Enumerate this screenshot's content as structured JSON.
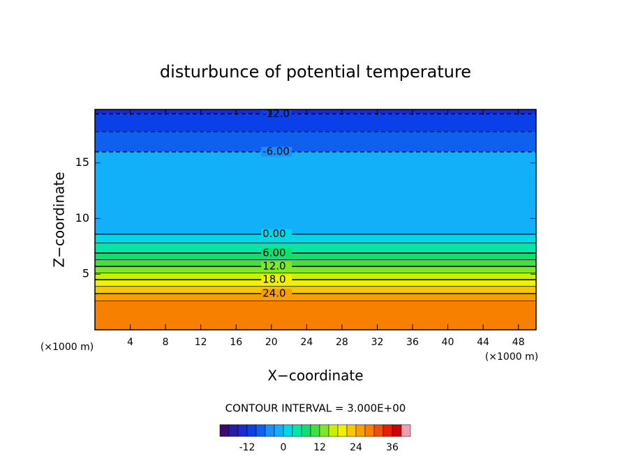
{
  "chart_data": {
    "type": "contour",
    "title": "disturbunce of potential temperature",
    "xlabel": "X−coordinate",
    "ylabel": "Z−coordinate",
    "x_unit": "(×1000 m)",
    "y_unit": "(×1000 m)",
    "note": "CONTOUR INTERVAL = 3.000E+00",
    "xlim": [
      0,
      50
    ],
    "ylim": [
      0,
      19.8
    ],
    "xticks": [
      4,
      8,
      12,
      16,
      20,
      24,
      28,
      32,
      36,
      40,
      44,
      48
    ],
    "yticks": [
      5,
      10,
      15
    ],
    "contours": [
      {
        "value": -12,
        "label": "-12.0",
        "z": 19.4
      },
      {
        "value": -9,
        "z": 17.8
      },
      {
        "value": -6,
        "label": "-6.00",
        "z": 16.0
      },
      {
        "value": 0,
        "label": "0.00",
        "z": 8.6
      },
      {
        "value": 3,
        "z": 7.8
      },
      {
        "value": 6,
        "label": "6.00",
        "z": 6.9
      },
      {
        "value": 9,
        "z": 6.3
      },
      {
        "value": 12,
        "label": "12.0",
        "z": 5.7
      },
      {
        "value": 15,
        "z": 5.1
      },
      {
        "value": 18,
        "label": "18.0",
        "z": 4.5
      },
      {
        "value": 21,
        "z": 3.9
      },
      {
        "value": 24,
        "label": "24.0",
        "z": 3.25
      },
      {
        "value": 27,
        "z": 2.6
      }
    ],
    "clim": [
      -21,
      42
    ],
    "cstep": 3,
    "cticks": [
      -12,
      0,
      12,
      24,
      36
    ],
    "colormap": [
      "#3c0a6e",
      "#2a1aa8",
      "#1a2ad0",
      "#0a40e8",
      "#1060f0",
      "#1a90f8",
      "#12b0f8",
      "#00d8e8",
      "#00e8a8",
      "#10e070",
      "#40e040",
      "#80e820",
      "#c8f000",
      "#f0f000",
      "#f8c800",
      "#f8a000",
      "#f88000",
      "#f05000",
      "#e82000",
      "#d00000",
      "#f0a0b0"
    ]
  }
}
